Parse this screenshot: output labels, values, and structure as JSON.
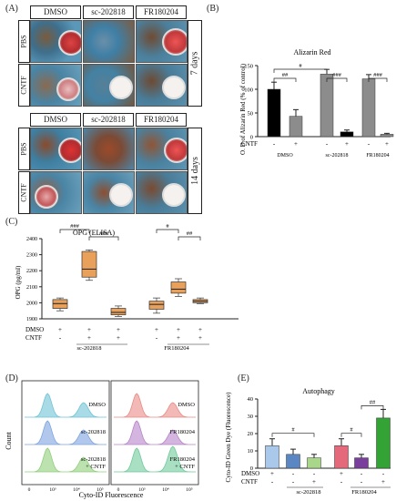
{
  "panel_labels": {
    "a": "(A)",
    "b": "(B)",
    "c": "(C)",
    "d": "(D)",
    "e": "(E)"
  },
  "panel_a": {
    "columns": [
      "DMSO",
      "sc-202818",
      "FR180204"
    ],
    "rows": [
      "PBS",
      "CNTF"
    ],
    "timepoints": [
      "7 days",
      "14 days"
    ],
    "colors": {
      "culture_blue": "#4f8fb0",
      "culture_rust": "#9b4f2a",
      "alizarin_red": "#c2383a",
      "white_dish": "#f4f1ee"
    }
  },
  "panel_b": {
    "chart_data": {
      "type": "bar",
      "title": "Alizarin Red",
      "ylabel": "O. D of Alizarin Red (% of control)",
      "ylim": [
        0,
        150
      ],
      "yticks": [
        "0",
        "50",
        "100",
        "150"
      ],
      "groups": [
        "DMSO",
        "sc-202818",
        "FR180204"
      ],
      "cntf_row_label": "CNTF",
      "cntf_signs": [
        "-",
        "+",
        "-",
        "+",
        "-",
        "+"
      ],
      "values": [
        100,
        43,
        132,
        10,
        122,
        5
      ],
      "errors": [
        15,
        14,
        10,
        4,
        9,
        2
      ],
      "colors": [
        "#000000",
        "#8c8c8c",
        "#8c8c8c",
        "#000000",
        "#8c8c8c",
        "#8c8c8c"
      ],
      "significance": [
        {
          "text": "##",
          "from": 0,
          "to": 1,
          "level": 1
        },
        {
          "text": "#",
          "from": 0,
          "to": 2,
          "level": 2
        },
        {
          "text": "###",
          "from": 2,
          "to": 3,
          "level": 1
        },
        {
          "text": "###",
          "from": 4,
          "to": 5,
          "level": 1
        }
      ]
    }
  },
  "panel_c": {
    "chart_data": {
      "type": "box",
      "title": "OPG (ELISA)",
      "ylabel": "OPG (pg/ml)",
      "ylim": [
        1900,
        2400
      ],
      "yticks": [
        "1900",
        "2000",
        "2100",
        "2200",
        "2300",
        "2400"
      ],
      "row_labels": [
        "DMSO",
        "CNTF"
      ],
      "dmso_signs": [
        "+",
        "+",
        "+",
        "+",
        "+",
        "+"
      ],
      "cntf_signs": [
        "-",
        "+",
        "+",
        "-",
        "+",
        "+"
      ],
      "group_labels": [
        "sc-202818",
        "FR180204"
      ],
      "boxes": [
        {
          "min": 1950,
          "q1": 1965,
          "median": 1995,
          "q3": 2020,
          "max": 2030
        },
        {
          "min": 2140,
          "q1": 2160,
          "median": 2210,
          "q3": 2320,
          "max": 2330
        },
        {
          "min": 1915,
          "q1": 1925,
          "median": 1940,
          "q3": 1965,
          "max": 1980
        },
        {
          "min": 1935,
          "q1": 1960,
          "median": 1990,
          "q3": 2010,
          "max": 2030
        },
        {
          "min": 2040,
          "q1": 2060,
          "median": 2085,
          "q3": 2130,
          "max": 2150
        },
        {
          "min": 1995,
          "q1": 2000,
          "median": 2010,
          "q3": 2020,
          "max": 2030
        }
      ],
      "color": "#e8a05a",
      "significance": [
        {
          "text": "###",
          "from": 0,
          "to": 1,
          "level": 1
        },
        {
          "text": "###",
          "from": 1,
          "to": 2,
          "level": 2
        },
        {
          "text": "#",
          "from": 3,
          "to": 4,
          "level": 1
        },
        {
          "text": "##",
          "from": 4,
          "to": 5,
          "level": 2
        }
      ]
    }
  },
  "panel_d": {
    "xlabel": "Cyto-ID Fluorescence",
    "ylabel": "Count",
    "left_labels": [
      "DMSO",
      "sc-202818",
      "sc-202818 + CNTF"
    ],
    "right_labels": [
      "DMSO",
      "FR180204",
      "FR180204 + CNTF"
    ],
    "x_ticks": [
      "0",
      "10³",
      "10⁴",
      "10⁵"
    ],
    "left_colors": [
      "#6fc3d6",
      "#7da4e0",
      "#8fcf7a"
    ],
    "right_colors": [
      "#e98a86",
      "#b683c9",
      "#6fc99a"
    ]
  },
  "panel_e": {
    "chart_data": {
      "type": "bar",
      "title": "Autophagy",
      "ylabel": "Cyto-ID Green Dye (Fluorescence)",
      "ylim": [
        0,
        40
      ],
      "yticks": [
        "0",
        "10",
        "20",
        "30",
        "40"
      ],
      "row_labels": [
        "DMSO",
        "CNTF"
      ],
      "dmso_signs": [
        "+",
        "-",
        "-",
        "+",
        "-",
        "-"
      ],
      "cntf_signs": [
        "-",
        "-",
        "+",
        "-",
        "-",
        "+"
      ],
      "group_labels": [
        "sc-202818",
        "FR180204"
      ],
      "values": [
        13,
        8,
        6,
        13,
        6,
        29
      ],
      "errors": [
        4,
        3,
        2,
        4,
        2,
        5
      ],
      "colors": [
        "#a9c8ea",
        "#5b86c4",
        "#a9d78a",
        "#e46a7b",
        "#7a3e9d",
        "#33a336"
      ],
      "significance": [
        {
          "text": "#",
          "from": 0,
          "to": 2,
          "level": 1
        },
        {
          "text": "#",
          "from": 3,
          "to": 4,
          "level": 1
        },
        {
          "text": "##",
          "from": 4,
          "to": 5,
          "level": 2
        }
      ]
    }
  }
}
